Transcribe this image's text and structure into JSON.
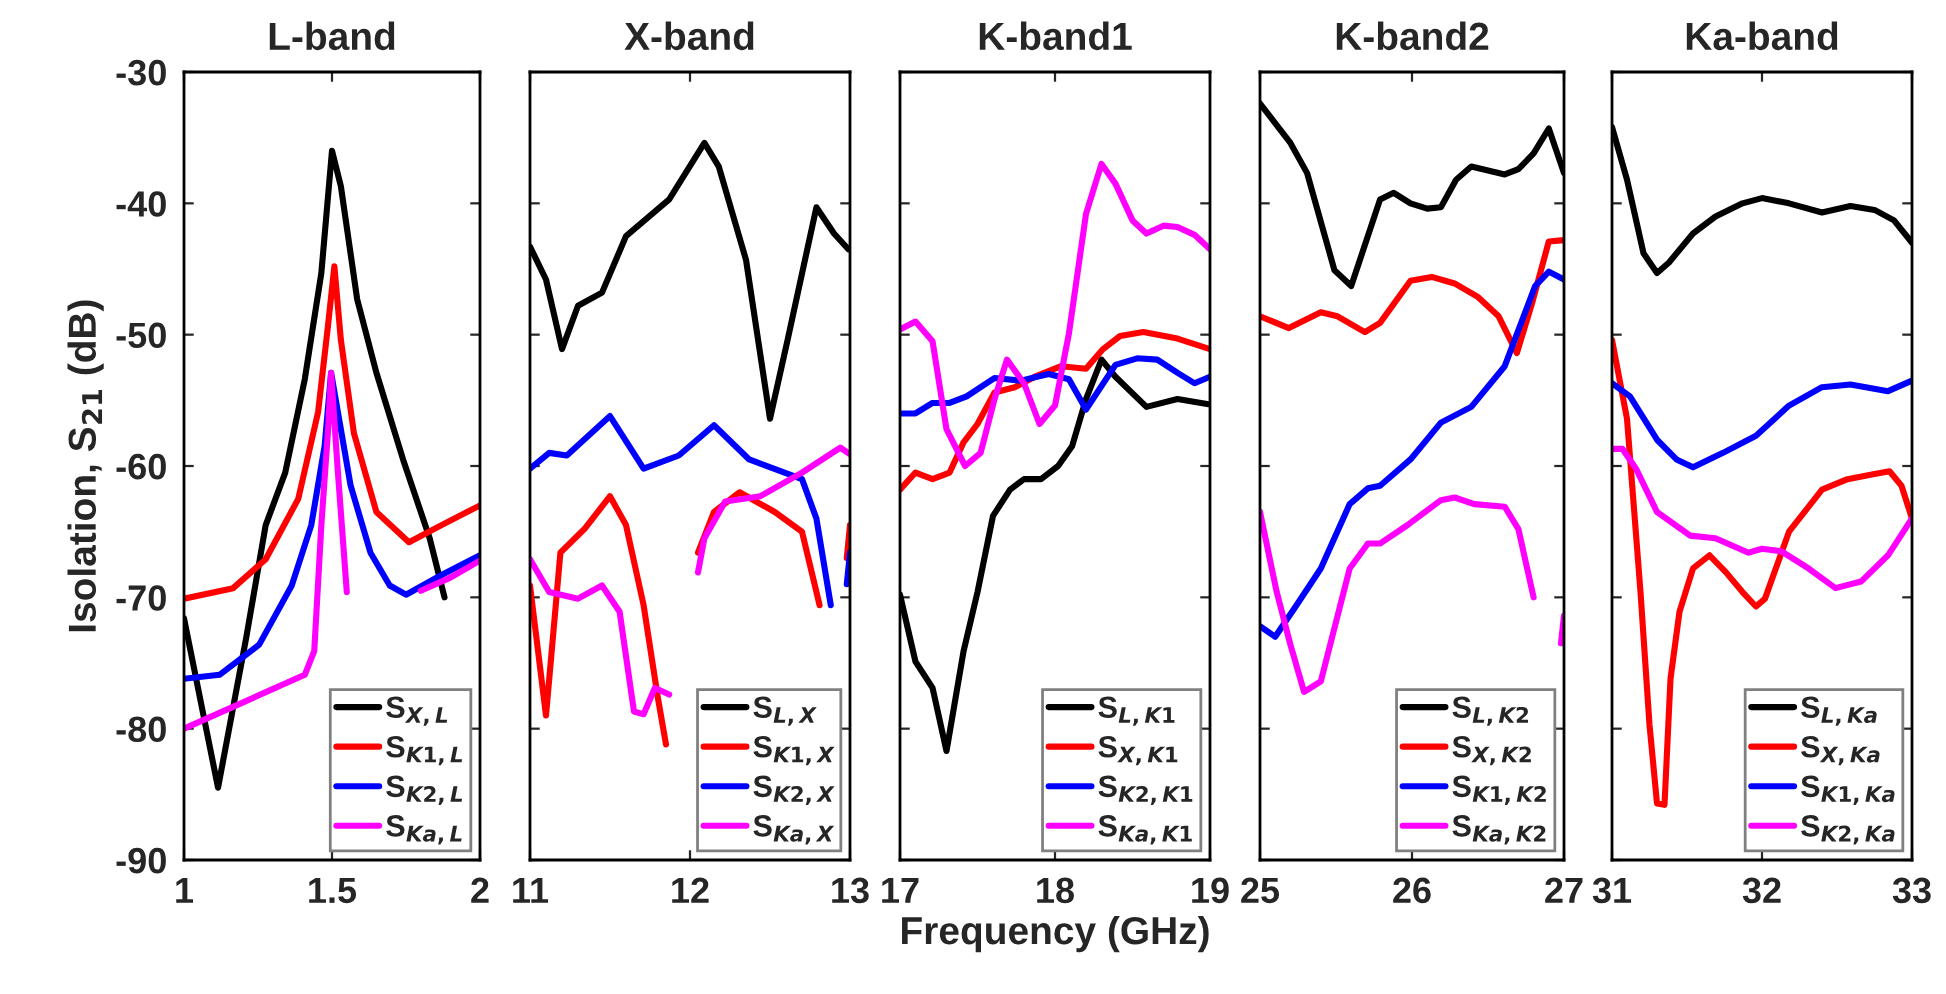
{
  "chart_data": [
    {
      "type": "line",
      "title": "L-band",
      "ylabel": "Isolation, S$_{21}$ (dB)",
      "xlim": [
        1,
        2
      ],
      "xticks": [
        1,
        1.5,
        2
      ],
      "ylim": [
        -90,
        -30
      ],
      "yticks": [
        -90,
        -80,
        -70,
        -60,
        -50,
        -40,
        -30
      ],
      "grid": false,
      "legend": "bottom right",
      "marker": "none",
      "line_style": "solid",
      "series": [
        {
          "name": "S$_{X,L}$",
          "color": "#000000",
          "x": [
            1.0,
            1.115,
            1.21,
            1.276,
            1.342,
            1.408,
            1.464,
            1.5,
            1.53,
            1.585,
            1.65,
            1.74,
            1.83,
            1.88
          ],
          "values": [
            -71.6,
            -84.5,
            -73.1,
            -64.5,
            -60.5,
            -53.4,
            -45.3,
            -36.0,
            -38.7,
            -47.3,
            -52.9,
            -59.5,
            -65.5,
            -70.0
          ]
        },
        {
          "name": "S$_{K1,L}$",
          "color": "#ff0000",
          "x": [
            1.0,
            1.166,
            1.276,
            1.386,
            1.453,
            1.486,
            1.508,
            1.53,
            1.574,
            1.65,
            1.76,
            1.87,
            2.0
          ],
          "values": [
            -70.1,
            -69.3,
            -67.1,
            -62.5,
            -55.9,
            -49.4,
            -44.8,
            -50.4,
            -57.5,
            -63.5,
            -65.8,
            -64.5,
            -63.0
          ]
        },
        {
          "name": "S$_{K2,L}$",
          "color": "#0000ff",
          "x": [
            1.0,
            1.12,
            1.254,
            1.364,
            1.43,
            1.475,
            1.497,
            1.52,
            1.563,
            1.63,
            1.695,
            1.75,
            1.87,
            2.0
          ],
          "values": [
            -76.2,
            -75.9,
            -73.6,
            -69.1,
            -64.5,
            -58.5,
            -52.9,
            -55.9,
            -61.5,
            -66.6,
            -69.1,
            -69.8,
            -68.3,
            -66.8
          ]
        },
        {
          "name": "S$_{Ka,L}$",
          "color": "#ff00ff",
          "x": [
            1.0,
            1.408,
            1.44,
            1.464,
            1.486,
            1.497,
            1.52,
            1.55,
            1.6,
            1.7,
            1.8,
            1.9,
            2.0
          ],
          "values": [
            -80.0,
            -75.9,
            -74.1,
            -64.5,
            -57.5,
            -52.9,
            -60.5,
            -69.6,
            null,
            null,
            -69.5,
            -68.5,
            -67.2
          ]
        }
      ],
      "tick_labels": true
    },
    {
      "type": "line",
      "title": "X-band",
      "xlim": [
        11,
        13
      ],
      "xticks": [
        11,
        12,
        13
      ],
      "ylim": [
        -90,
        -30
      ],
      "yticks": [
        -90,
        -80,
        -70,
        -60,
        -50,
        -40,
        -30
      ],
      "tick_labels": "x",
      "grid": false,
      "legend": "bottom right",
      "marker": "none",
      "line_style": "solid",
      "series": [
        {
          "name": "S$_{L,X}$",
          "color": "#000000",
          "x": [
            11.0,
            11.1,
            11.2,
            11.3,
            11.45,
            11.6,
            11.87,
            12.09,
            12.18,
            12.35,
            12.5,
            12.61,
            12.79,
            12.9,
            12.99
          ],
          "values": [
            -43.3,
            -45.8,
            -51.1,
            -47.8,
            -46.8,
            -42.5,
            -39.7,
            -35.4,
            -37.2,
            -44.3,
            -56.4,
            -50.4,
            -40.3,
            -42.3,
            -43.5
          ]
        },
        {
          "name": "S$_{K1,X}$",
          "color": "#ff0000",
          "x": [
            11.0,
            11.1,
            11.19,
            11.34,
            11.5,
            11.6,
            11.71,
            11.8,
            11.85,
            11.93,
            12.05,
            12.15,
            12.31,
            12.53,
            12.7,
            12.81,
            12.9,
            12.98,
            13.0
          ],
          "values": [
            -69.1,
            -79.0,
            -66.6,
            -64.8,
            -62.3,
            -64.5,
            -70.6,
            -77.7,
            -81.2,
            null,
            -66.6,
            -63.5,
            -62.0,
            -63.5,
            -65.0,
            -70.6,
            null,
            -67.0,
            -64.5
          ]
        },
        {
          "name": "S$_{K2,X}$",
          "color": "#0000ff",
          "x": [
            11.0,
            11.12,
            11.23,
            11.5,
            11.71,
            11.93,
            12.15,
            12.37,
            12.7,
            12.79,
            12.88,
            12.95,
            12.98,
            13.0
          ],
          "values": [
            -60.2,
            -59.0,
            -59.2,
            -56.2,
            -60.2,
            -59.2,
            -56.9,
            -59.5,
            -61.0,
            -64.0,
            -70.6,
            null,
            -69.0,
            -66.6
          ]
        },
        {
          "name": "S$_{Ka,X}$",
          "color": "#ff00ff",
          "x": [
            11.0,
            11.12,
            11.3,
            11.45,
            11.56,
            11.65,
            11.71,
            11.78,
            11.87,
            11.93,
            12.05,
            12.09,
            12.22,
            12.44,
            12.7,
            12.94,
            13.0
          ],
          "values": [
            -67.1,
            -69.6,
            -70.1,
            -69.1,
            -71.1,
            -78.7,
            -78.9,
            -76.9,
            -77.4,
            null,
            -68.1,
            -65.5,
            -62.7,
            -62.3,
            -60.5,
            -58.6,
            -59.1
          ]
        }
      ]
    },
    {
      "type": "line",
      "title": "K-band1",
      "xlabel": "Frequency (GHz)",
      "xlim": [
        17,
        19
      ],
      "xticks": [
        17,
        18,
        19
      ],
      "ylim": [
        -90,
        -30
      ],
      "yticks": [
        -90,
        -80,
        -70,
        -60,
        -50,
        -40,
        -30
      ],
      "tick_labels": "x",
      "grid": false,
      "legend": "bottom right",
      "marker": "none",
      "line_style": "solid",
      "series": [
        {
          "name": "S$_{L,K1}$",
          "color": "#000000",
          "x": [
            17.0,
            17.1,
            17.21,
            17.3,
            17.41,
            17.5,
            17.6,
            17.71,
            17.8,
            17.91,
            18.02,
            18.11,
            18.2,
            18.3,
            18.39,
            18.59,
            18.79,
            18.99
          ],
          "values": [
            -69.8,
            -74.9,
            -76.9,
            -81.7,
            -74.1,
            -69.6,
            -63.8,
            -61.8,
            -61.0,
            -61.0,
            -60.0,
            -58.5,
            -54.9,
            -51.9,
            -53.2,
            -55.5,
            -54.9,
            -55.3
          ]
        },
        {
          "name": "S$_{X,K1}$",
          "color": "#ff0000",
          "x": [
            17.0,
            17.1,
            17.21,
            17.32,
            17.41,
            17.5,
            17.61,
            17.74,
            17.87,
            18.04,
            18.2,
            18.31,
            18.42,
            18.57,
            18.79,
            19.0
          ],
          "values": [
            -61.8,
            -60.5,
            -61.0,
            -60.5,
            -58.2,
            -56.8,
            -54.4,
            -54.0,
            -53.2,
            -52.4,
            -52.6,
            -51.1,
            -50.1,
            -49.8,
            -50.3,
            -51.1
          ]
        },
        {
          "name": "S$_{K2,K1}$",
          "color": "#0000ff",
          "x": [
            17.0,
            17.1,
            17.21,
            17.32,
            17.43,
            17.61,
            17.78,
            17.96,
            18.09,
            18.2,
            18.39,
            18.53,
            18.66,
            18.79,
            18.9,
            19.0
          ],
          "values": [
            -56.0,
            -56.0,
            -55.2,
            -55.2,
            -54.7,
            -53.3,
            -53.5,
            -53.0,
            -53.4,
            -55.7,
            -52.3,
            -51.8,
            -51.9,
            -52.9,
            -53.7,
            -53.2
          ]
        },
        {
          "name": "S$_{Ka,K1}$",
          "color": "#ff00ff",
          "x": [
            17.0,
            17.1,
            17.21,
            17.3,
            17.42,
            17.52,
            17.61,
            17.69,
            17.8,
            17.9,
            18.0,
            18.09,
            18.2,
            18.3,
            18.39,
            18.5,
            18.59,
            18.7,
            18.79,
            18.9,
            19.0
          ],
          "values": [
            -49.6,
            -49.0,
            -50.5,
            -57.2,
            -60.0,
            -59.0,
            -54.9,
            -51.9,
            -53.7,
            -56.8,
            -55.4,
            -49.9,
            -40.8,
            -37.0,
            -38.5,
            -41.3,
            -42.3,
            -41.7,
            -41.8,
            -42.4,
            -43.5
          ]
        }
      ]
    },
    {
      "type": "line",
      "title": "K-band2",
      "xlim": [
        25,
        27
      ],
      "xticks": [
        25,
        26,
        27
      ],
      "ylim": [
        -90,
        -30
      ],
      "yticks": [
        -90,
        -80,
        -70,
        -60,
        -50,
        -40,
        -30
      ],
      "tick_labels": "x",
      "grid": false,
      "legend": "bottom right",
      "marker": "none",
      "line_style": "solid",
      "series": [
        {
          "name": "S$_{L,K2}$",
          "color": "#000000",
          "x": [
            25.0,
            25.2,
            25.31,
            25.49,
            25.6,
            25.79,
            25.88,
            25.99,
            26.1,
            26.19,
            26.29,
            26.39,
            26.5,
            26.61,
            26.7,
            26.8,
            26.9,
            27.0
          ],
          "values": [
            -32.4,
            -35.4,
            -37.7,
            -45.1,
            -46.3,
            -39.7,
            -39.2,
            -40.0,
            -40.4,
            -40.3,
            -38.2,
            -37.2,
            -37.5,
            -37.8,
            -37.4,
            -36.2,
            -34.3,
            -37.7
          ]
        },
        {
          "name": "S$_{X,K2}$",
          "color": "#ff0000",
          "x": [
            25.0,
            25.19,
            25.4,
            25.51,
            25.69,
            25.79,
            25.99,
            26.13,
            26.28,
            26.43,
            26.57,
            26.69,
            26.79,
            26.9,
            27.0
          ],
          "values": [
            -48.6,
            -49.5,
            -48.3,
            -48.6,
            -49.8,
            -49.1,
            -45.9,
            -45.6,
            -46.1,
            -47.1,
            -48.6,
            -51.4,
            -47.6,
            -42.9,
            -42.8
          ]
        },
        {
          "name": "S$_{K1,K2}$",
          "color": "#0000ff",
          "x": [
            25.0,
            25.1,
            25.24,
            25.4,
            25.59,
            25.71,
            25.79,
            25.99,
            26.19,
            26.39,
            26.61,
            26.81,
            26.9,
            27.0
          ],
          "values": [
            -72.2,
            -73.0,
            -70.6,
            -67.8,
            -62.9,
            -61.7,
            -61.5,
            -59.5,
            -56.7,
            -55.5,
            -52.4,
            -46.3,
            -45.2,
            -45.8
          ]
        },
        {
          "name": "S$_{Ka,K2}$",
          "color": "#ff00ff",
          "x": [
            25.0,
            25.11,
            25.2,
            25.29,
            25.4,
            25.59,
            25.71,
            25.79,
            25.97,
            26.19,
            26.28,
            26.41,
            26.61,
            26.7,
            26.8,
            26.9,
            26.98,
            27.0
          ],
          "values": [
            -63.5,
            -69.6,
            -73.6,
            -77.2,
            -76.4,
            -67.8,
            -65.9,
            -65.9,
            -64.5,
            -62.6,
            -62.4,
            -62.9,
            -63.1,
            -64.8,
            -70.0,
            null,
            -73.5,
            -71.4
          ]
        }
      ]
    },
    {
      "type": "line",
      "title": "Ka-band",
      "xlim": [
        31,
        33
      ],
      "xticks": [
        31,
        32,
        33
      ],
      "ylim": [
        -90,
        -30
      ],
      "yticks": [
        -90,
        -80,
        -70,
        -60,
        -50,
        -40,
        -30
      ],
      "tick_labels": "x",
      "grid": false,
      "legend": "bottom right",
      "marker": "none",
      "line_style": "solid",
      "series": [
        {
          "name": "S$_{L,Ka}$",
          "color": "#000000",
          "x": [
            31.0,
            31.1,
            31.21,
            31.3,
            31.38,
            31.54,
            31.69,
            31.87,
            32.0,
            32.18,
            32.4,
            32.59,
            32.75,
            32.88,
            33.0
          ],
          "values": [
            -34.2,
            -38.2,
            -43.8,
            -45.3,
            -44.5,
            -42.3,
            -41.0,
            -40.0,
            -39.6,
            -40.0,
            -40.7,
            -40.2,
            -40.5,
            -41.3,
            -43.0
          ]
        },
        {
          "name": "S$_{X,Ka}$",
          "color": "#ff0000",
          "x": [
            31.0,
            31.1,
            31.19,
            31.25,
            31.3,
            31.35,
            31.39,
            31.45,
            31.54,
            31.65,
            31.76,
            31.87,
            31.96,
            32.02,
            32.18,
            32.4,
            32.57,
            32.75,
            32.85,
            32.93,
            33.0
          ],
          "values": [
            -50.4,
            -56.4,
            -69.6,
            -79.7,
            -85.7,
            -85.8,
            -76.2,
            -71.1,
            -67.8,
            -66.8,
            -68.1,
            -69.6,
            -70.7,
            -70.1,
            -65.0,
            -61.8,
            -61.0,
            -60.6,
            -60.4,
            -61.5,
            -64.0
          ]
        },
        {
          "name": "S$_{K1,Ka}$",
          "color": "#0000ff",
          "x": [
            31.0,
            31.12,
            31.3,
            31.43,
            31.54,
            31.74,
            31.96,
            32.18,
            32.4,
            32.59,
            32.84,
            33.0
          ],
          "values": [
            -53.7,
            -54.7,
            -58.0,
            -59.5,
            -60.1,
            -59.0,
            -57.7,
            -55.4,
            -54.0,
            -53.8,
            -54.3,
            -53.5
          ]
        },
        {
          "name": "S$_{K2,Ka}$",
          "color": "#ff00ff",
          "x": [
            31.0,
            31.07,
            31.16,
            31.3,
            31.52,
            31.69,
            31.91,
            32.0,
            32.13,
            32.31,
            32.49,
            32.66,
            32.84,
            33.0
          ],
          "values": [
            -58.7,
            -58.7,
            -60.2,
            -63.5,
            -65.3,
            -65.5,
            -66.6,
            -66.3,
            -66.5,
            -67.8,
            -69.3,
            -68.8,
            -66.8,
            -64.0
          ]
        }
      ]
    }
  ]
}
